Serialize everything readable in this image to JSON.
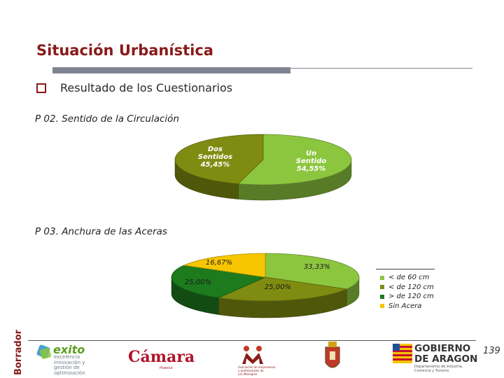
{
  "header": {
    "title": "Situación Urbanística",
    "bullet": "Resultado de los Cuestionarios"
  },
  "questions": {
    "p02": "P 02. Sentido de la Circulación",
    "p03": "P 03. Anchura de las Aceras"
  },
  "chart_data": [
    {
      "type": "pie",
      "title": "P 02. Sentido de la Circulación",
      "slices": [
        {
          "label": "Un Sentido",
          "value": 54.55,
          "display": "54,55%",
          "color": "#8cc63f"
        },
        {
          "label": "Dos Sentidos",
          "value": 45.45,
          "display": "45,45%",
          "color": "#7f8c11"
        }
      ]
    },
    {
      "type": "pie",
      "title": "P 03. Anchura de las Aceras",
      "slices": [
        {
          "label": "< de 60 cm",
          "value": 33.33,
          "display": "33,33%",
          "color": "#8cc63f"
        },
        {
          "label": "< de 120 cm",
          "value": 25.0,
          "display": "25,00%",
          "color": "#7f8c11"
        },
        {
          "label": "> de 120 cm",
          "value": 25.0,
          "display": "25,00%",
          "color": "#1d7a1d"
        },
        {
          "label": "Sin Acera",
          "value": 16.67,
          "display": "16,67%",
          "color": "#f7c600"
        }
      ],
      "legend_position": "right"
    }
  ],
  "footer": {
    "watermark": "Borrador",
    "page_number": "139",
    "logos": {
      "exito": "exito",
      "exito_sub": [
        "excelencia",
        "innovación y",
        "gestión de",
        "optimización"
      ],
      "camara": "Cámara",
      "camara_sub": "Huesca",
      "mujeres_sub": [
        "Asociación de empresarias",
        "y profesionales de",
        "Los Monegros"
      ],
      "gobierno": [
        "GOBIERNO",
        "DE ARAGON"
      ],
      "gobierno_sub": [
        "Departamento de Industria,",
        "Comercio y Turismo"
      ]
    }
  }
}
